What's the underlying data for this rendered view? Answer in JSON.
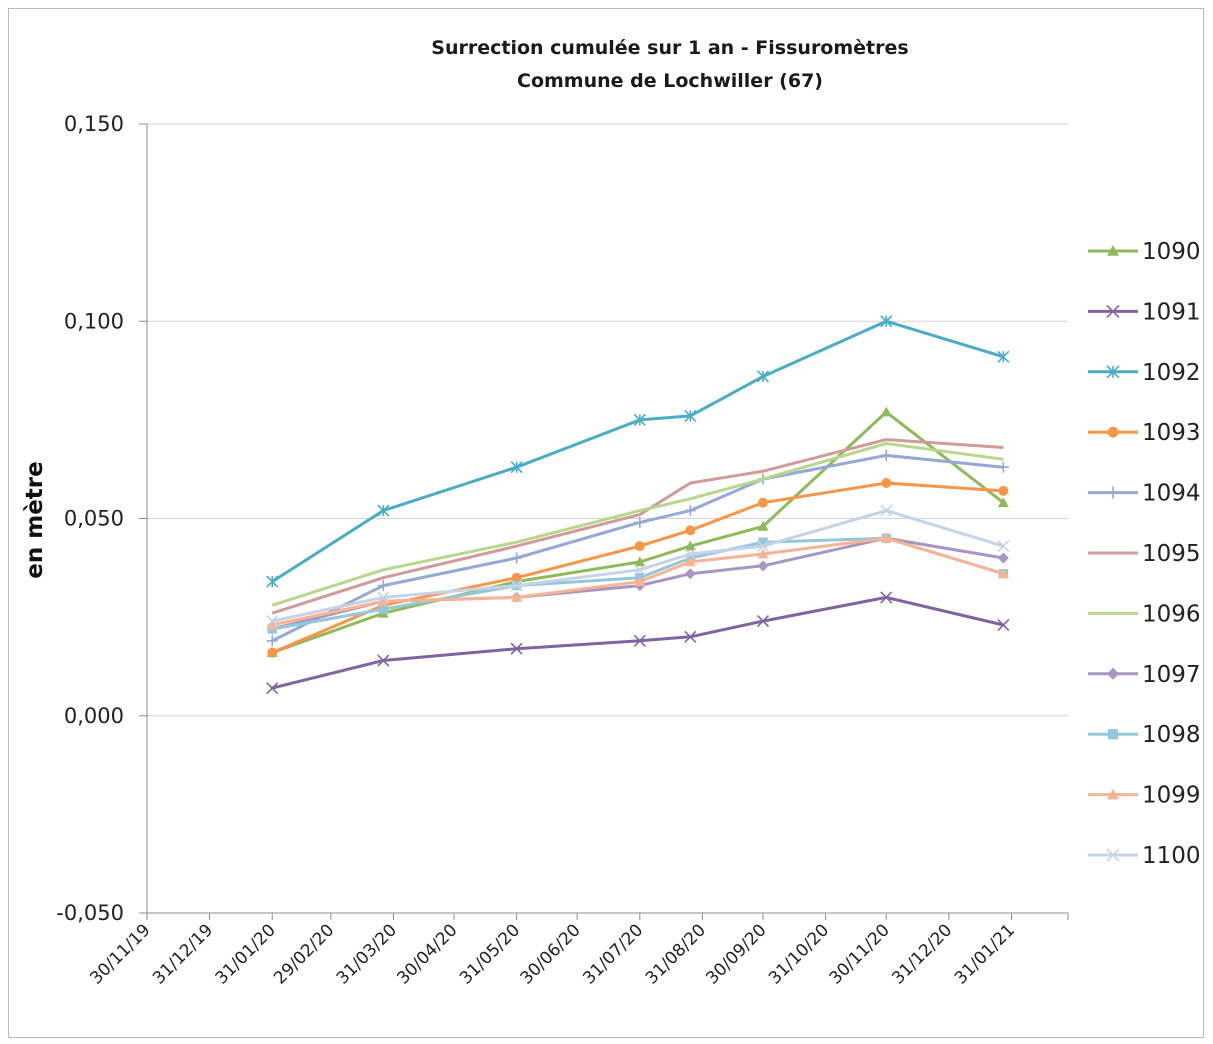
{
  "chart_data": {
    "type": "line",
    "title": "Surrection cumulée sur 1 an - Fissuromètres",
    "subtitle": "Commune de Lochwiller (67)",
    "xlabel": "",
    "ylabel": "en mètre",
    "ylim": [
      -0.05,
      0.15
    ],
    "yticks": [
      -0.05,
      0.0,
      0.05,
      0.1,
      0.15
    ],
    "ytick_labels": [
      "-0,050",
      "0,000",
      "0,050",
      "0,100",
      "0,150"
    ],
    "xlim": [
      "2019-11-30",
      "2021-02-28"
    ],
    "xticks": [
      "2019-11-30",
      "2019-12-31",
      "2020-01-31",
      "2020-02-29",
      "2020-03-31",
      "2020-04-30",
      "2020-05-31",
      "2020-06-30",
      "2020-07-31",
      "2020-08-31",
      "2020-09-30",
      "2020-10-31",
      "2020-11-30",
      "2020-12-31",
      "2021-01-31"
    ],
    "xtick_labels": [
      "30/11/19",
      "31/12/19",
      "31/01/20",
      "29/02/20",
      "31/03/20",
      "30/04/20",
      "31/05/20",
      "30/06/20",
      "31/07/20",
      "31/08/20",
      "30/09/20",
      "31/10/20",
      "30/11/20",
      "31/12/20",
      "31/01/21"
    ],
    "x": [
      "2020-01-31",
      "2020-03-26",
      "2020-05-31",
      "2020-07-31",
      "2020-08-25",
      "2020-09-30",
      "2020-11-30",
      "2021-01-27"
    ],
    "grid": "horizontal",
    "legend_position": "right",
    "series": [
      {
        "name": "1090",
        "color": "#8fba5a",
        "marker": "triangle",
        "values": [
          0.016,
          0.026,
          0.034,
          0.039,
          0.043,
          0.048,
          0.077,
          0.054
        ]
      },
      {
        "name": "1091",
        "color": "#8064a2",
        "marker": "x",
        "values": [
          0.007,
          0.014,
          0.017,
          0.019,
          0.02,
          0.024,
          0.03,
          0.023
        ]
      },
      {
        "name": "1092",
        "color": "#4bacc6",
        "marker": "star",
        "values": [
          0.034,
          0.052,
          0.063,
          0.075,
          0.076,
          0.086,
          0.1,
          0.091
        ]
      },
      {
        "name": "1093",
        "color": "#f79646",
        "marker": "circle",
        "values": [
          0.016,
          0.028,
          0.035,
          0.043,
          0.047,
          0.054,
          0.059,
          0.057
        ]
      },
      {
        "name": "1094",
        "color": "#95a9d6",
        "marker": "plus",
        "values": [
          0.019,
          0.033,
          0.04,
          0.049,
          0.052,
          0.06,
          0.066,
          0.063
        ]
      },
      {
        "name": "1095",
        "color": "#d09b99",
        "marker": "none",
        "values": [
          0.026,
          0.035,
          0.043,
          0.051,
          0.059,
          0.062,
          0.07,
          0.068
        ]
      },
      {
        "name": "1096",
        "color": "#b6d78c",
        "marker": "none",
        "values": [
          0.028,
          0.037,
          0.044,
          0.052,
          0.055,
          0.06,
          0.069,
          0.065
        ]
      },
      {
        "name": "1097",
        "color": "#a795c3",
        "marker": "diamond",
        "values": [
          0.022,
          0.029,
          0.03,
          0.033,
          0.036,
          0.038,
          0.045,
          0.04
        ]
      },
      {
        "name": "1098",
        "color": "#93c7dc",
        "marker": "square",
        "values": [
          0.022,
          0.027,
          0.033,
          0.035,
          0.04,
          0.044,
          0.045,
          0.036
        ]
      },
      {
        "name": "1099",
        "color": "#f6b494",
        "marker": "triangle",
        "values": [
          0.023,
          0.029,
          0.03,
          0.034,
          0.039,
          0.041,
          0.045,
          0.036
        ]
      },
      {
        "name": "1100",
        "color": "#c6d3e6",
        "marker": "x",
        "values": [
          0.024,
          0.03,
          0.033,
          0.037,
          0.041,
          0.043,
          0.052,
          0.043
        ]
      }
    ]
  }
}
